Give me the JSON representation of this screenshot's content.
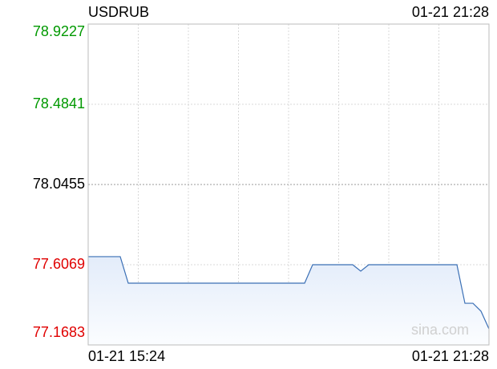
{
  "chart_data": {
    "type": "line",
    "title": "USDRUB",
    "updated": "01-21 21:28",
    "watermark": "sina.com",
    "categories": [
      "01-21 15:24",
      null,
      null,
      null,
      null,
      null,
      null,
      null,
      null,
      null,
      null,
      null,
      null,
      null,
      null,
      null,
      null,
      null,
      null,
      null,
      null,
      null,
      null,
      null,
      null,
      null,
      null,
      null,
      null,
      null,
      null,
      null,
      null,
      null,
      null,
      null,
      null,
      null,
      null,
      null,
      null,
      null,
      null,
      null,
      null,
      null,
      null,
      null,
      null,
      null,
      "01-21 21:28"
    ],
    "series": [
      {
        "name": "USDRUB",
        "color": "#3a6fb5",
        "values": [
          77.651,
          77.651,
          77.651,
          77.651,
          77.651,
          77.506,
          77.506,
          77.506,
          77.506,
          77.506,
          77.506,
          77.506,
          77.506,
          77.506,
          77.506,
          77.506,
          77.506,
          77.506,
          77.506,
          77.506,
          77.506,
          77.506,
          77.506,
          77.506,
          77.506,
          77.506,
          77.506,
          77.506,
          77.607,
          77.607,
          77.607,
          77.607,
          77.607,
          77.607,
          77.572,
          77.607,
          77.607,
          77.607,
          77.607,
          77.607,
          77.607,
          77.607,
          77.607,
          77.607,
          77.607,
          77.607,
          77.607,
          77.396,
          77.396,
          77.353,
          77.256
        ]
      }
    ],
    "ylim": [
      77.1683,
      78.9227
    ],
    "yticks": [
      77.1683,
      77.6069,
      78.0455,
      78.4841,
      78.9227
    ],
    "ytick_colors": [
      "#e00000",
      "#e00000",
      "#000000",
      "#009900",
      "#009900"
    ],
    "grid": true,
    "xgrid_divisions": 8
  }
}
